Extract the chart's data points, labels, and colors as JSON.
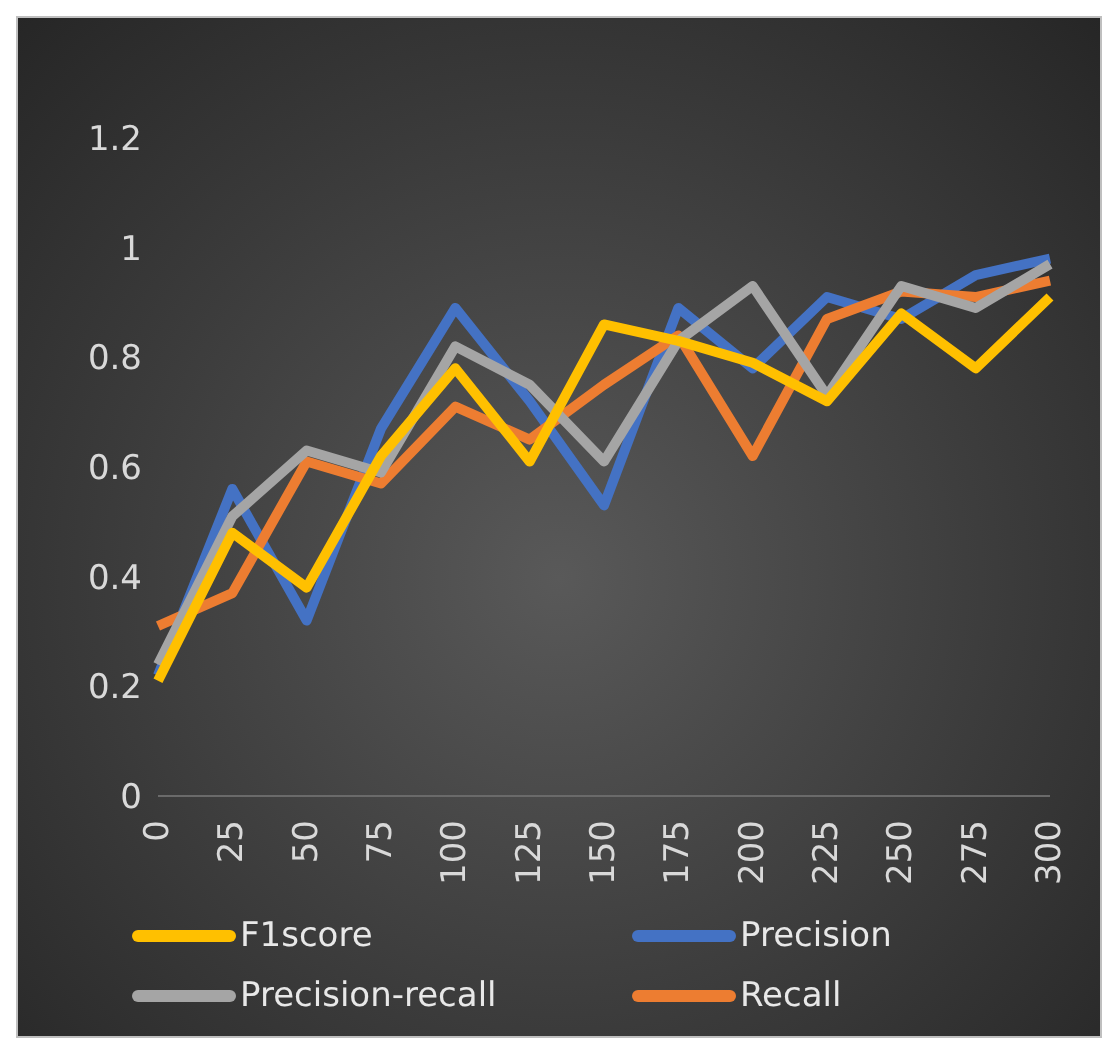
{
  "chart_data": {
    "type": "line",
    "categories": [
      "0",
      "25",
      "50",
      "75",
      "100",
      "125",
      "150",
      "175",
      "200",
      "225",
      "250",
      "275",
      "300"
    ],
    "series": [
      {
        "name": "Precision",
        "color": "#4472c4",
        "values": [
          0.22,
          0.56,
          0.32,
          0.67,
          0.89,
          0.72,
          0.53,
          0.89,
          0.78,
          0.91,
          0.87,
          0.95,
          0.98
        ]
      },
      {
        "name": "Recall",
        "color": "#ed7d31",
        "values": [
          0.31,
          0.37,
          0.61,
          0.57,
          0.71,
          0.65,
          0.75,
          0.84,
          0.62,
          0.87,
          0.92,
          0.91,
          0.94
        ]
      },
      {
        "name": "Precision-recall",
        "color": "#a5a5a5",
        "values": [
          0.24,
          0.51,
          0.63,
          0.59,
          0.82,
          0.75,
          0.61,
          0.83,
          0.93,
          0.73,
          0.93,
          0.89,
          0.97
        ]
      },
      {
        "name": "F1score",
        "color": "#ffc000",
        "values": [
          0.21,
          0.48,
          0.38,
          0.62,
          0.78,
          0.61,
          0.86,
          0.83,
          0.79,
          0.72,
          0.88,
          0.78,
          0.91
        ]
      }
    ],
    "ylim": [
      0,
      1.2
    ],
    "yticks": [
      0,
      0.2,
      0.4,
      0.6,
      0.8,
      1,
      1.2
    ],
    "grid": false,
    "legend": "bottom",
    "marker": "none",
    "line_style": "solid"
  }
}
